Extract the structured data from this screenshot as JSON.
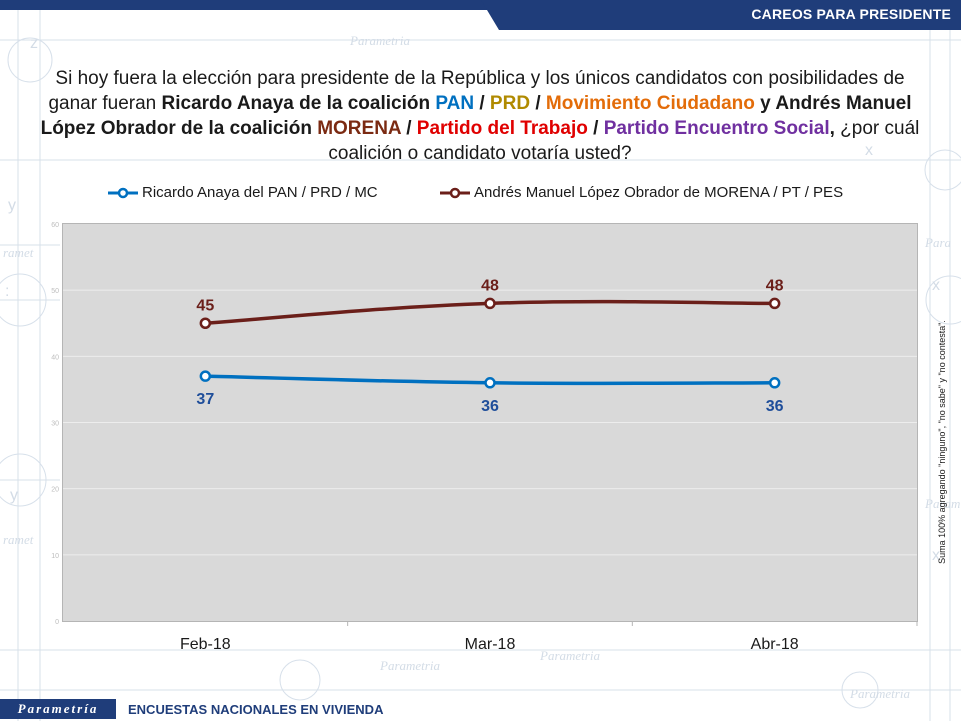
{
  "header": {
    "section_title": "CAREOS PARA PRESIDENTE",
    "bar_color": "#1f3d7a"
  },
  "question": {
    "p1": "Si hoy fuera la elección para presidente de la República y los únicos candidatos con posibilidades de ganar fueran ",
    "anaya": "Ricardo Anaya de la coalición",
    "pan": "PAN",
    "slash1": " / ",
    "prd": "PRD",
    "slash2": " / ",
    "mc": "Movimiento Ciudadano",
    "y": " y ",
    "amlo": "Andrés Manuel López Obrador de la coalición",
    "morena": "MORENA",
    "slash3": " / ",
    "pt": "Partido del Trabajo",
    "slash4": " / ",
    "pes": "Partido Encuentro Social",
    "comma": ",",
    "p2": " ¿por cuál coalición o candidato votaría usted?",
    "colors": {
      "pan": "#0070c0",
      "prd": "#b08a00",
      "mc": "#e36c09",
      "morena": "#7b2a12",
      "pt": "#e00000",
      "pes": "#7030a0"
    }
  },
  "chart_data": {
    "type": "line",
    "categories": [
      "Feb-18",
      "Mar-18",
      "Abr-18"
    ],
    "series": [
      {
        "name": "Ricardo Anaya del PAN / PRD / MC",
        "values": [
          37,
          36,
          36
        ],
        "color": "#0070c0"
      },
      {
        "name": "Andrés Manuel López Obrador de MORENA / PT / PES",
        "values": [
          45,
          48,
          48
        ],
        "color": "#6b1f1a"
      }
    ],
    "title": "",
    "xlabel": "",
    "ylabel": "",
    "ylim": [
      0,
      60
    ],
    "yticks": [
      0,
      10,
      20,
      30,
      40,
      50,
      60
    ],
    "legend_position": "top",
    "grid": true
  },
  "side_note": "Suma 100% agregando \"ninguno\", \"no sabe\" y \"no contesta\".",
  "footer": {
    "logo_text": "Parametría",
    "subtitle": "ENCUESTAS NACIONALES EN VIVIENDA"
  }
}
